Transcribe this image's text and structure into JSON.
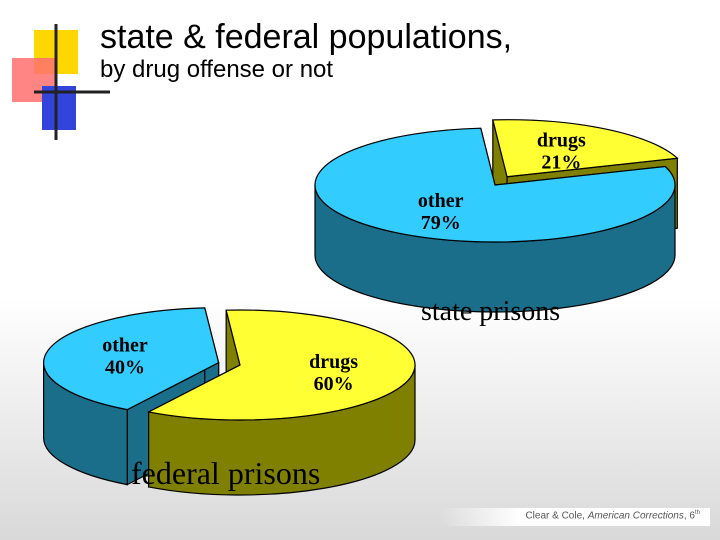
{
  "slide": {
    "title": "state & federal populations,",
    "subtitle": "by drug offense or not",
    "credit": {
      "author": "Clear & Cole, ",
      "book": "American Corrections",
      "edition": ", 6",
      "edition_suffix": "th"
    }
  },
  "colors": {
    "other_top": "#33ccff",
    "other_side": "#1a6e8a",
    "drugs_top": "#ffff33",
    "drugs_side": "#808000"
  },
  "chart_data": [
    {
      "type": "pie",
      "title": "state prisons",
      "slices": [
        {
          "label": "other",
          "value": 79,
          "value_label": "79%"
        },
        {
          "label": "drugs",
          "value": 21,
          "value_label": "21%",
          "exploded": true
        }
      ]
    },
    {
      "type": "pie",
      "title": "federal prisons",
      "slices": [
        {
          "label": "other",
          "value": 40,
          "value_label": "40%",
          "exploded": true
        },
        {
          "label": "drugs",
          "value": 60,
          "value_label": "60%"
        }
      ]
    }
  ]
}
